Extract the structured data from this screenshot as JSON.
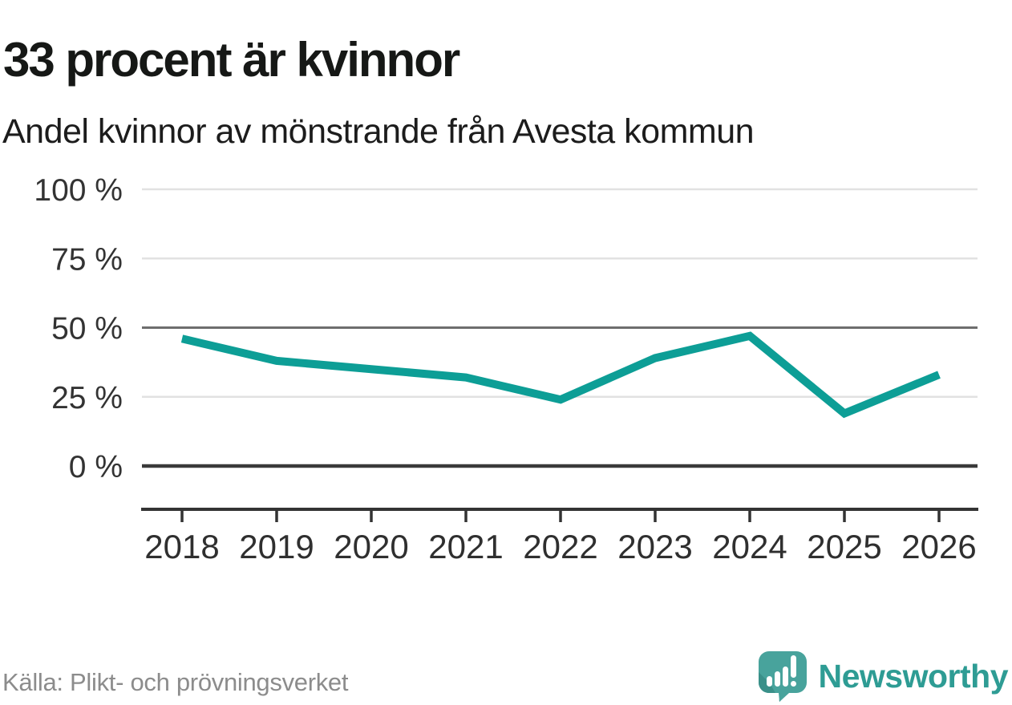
{
  "header": {
    "title": "33 procent är kvinnor",
    "subtitle": "Andel kvinnor av mönstrande från Avesta kommun"
  },
  "chart_data": {
    "type": "line",
    "title": "33 procent är kvinnor",
    "subtitle": "Andel kvinnor av mönstrande från Avesta kommun",
    "x": [
      2018,
      2019,
      2020,
      2021,
      2022,
      2023,
      2024,
      2025,
      2026
    ],
    "series": [
      {
        "name": "Andel kvinnor av mönstrande (%)",
        "values": [
          46,
          38,
          35,
          32,
          24,
          39,
          47,
          19,
          33
        ]
      }
    ],
    "unit": "%",
    "xlabel": "",
    "ylabel": "",
    "ylim": [
      0,
      100
    ],
    "y_ticks": [
      0,
      25,
      50,
      75,
      100
    ],
    "y_tick_labels": [
      "0 %",
      "25 %",
      "50 %",
      "75 %",
      "100 %"
    ],
    "x_tick_labels": [
      "2018",
      "2019",
      "2020",
      "2021",
      "2022",
      "2023",
      "2024",
      "2025",
      "2026"
    ],
    "grid": "horizontal",
    "emphasized_gridlines": [
      0,
      50
    ],
    "legend": "none",
    "line_color": "#0d9e96"
  },
  "footer": {
    "source": "Källa: Plikt- och prövningsverket",
    "brand": "Newsworthy"
  },
  "colors": {
    "line": "#0d9e96",
    "grid_light": "#e2e2e2",
    "grid_mid": "#6e6e6e",
    "grid_zero": "#3a3a3a",
    "axis": "#333333",
    "tick_label": "#333333",
    "title_text": "#161816",
    "source_text": "#8c8c8c",
    "brand_teal": "#2e9c94",
    "logo_bubble": "#48a39c",
    "logo_bubble_dark": "#3a9089"
  },
  "icons": {
    "logo": "newsworthy-speech-bubble-barchart-icon"
  }
}
